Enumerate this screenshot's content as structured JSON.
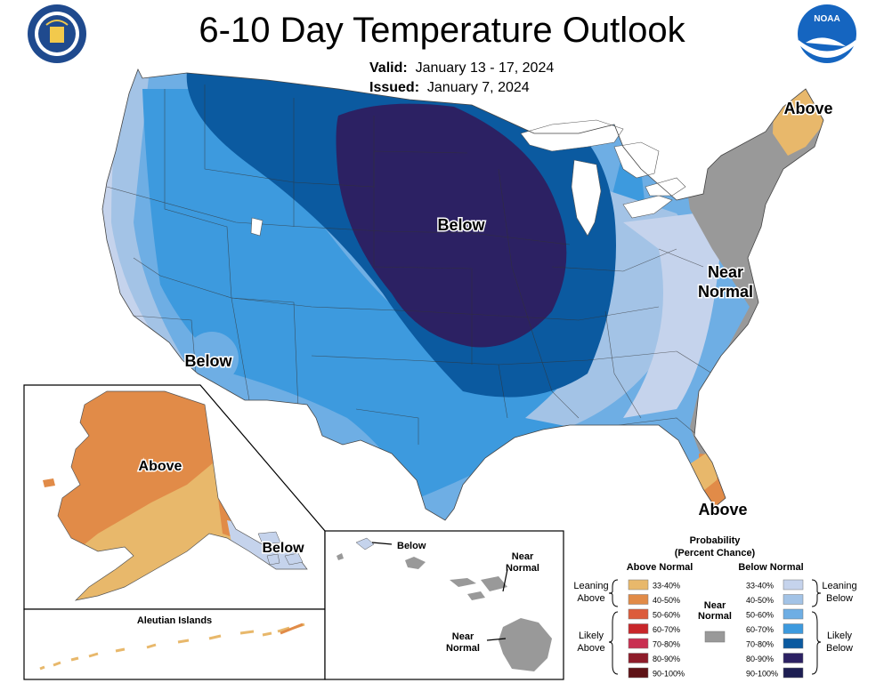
{
  "title": "6-10 Day Temperature Outlook",
  "valid_label": "Valid:",
  "valid_value": "January 13 - 17, 2024",
  "issued_label": "Issued:",
  "issued_value": "January 7, 2024",
  "logos": {
    "left": "doc-seal",
    "right": "noaa-logo",
    "right_text": "NOAA"
  },
  "map_labels": {
    "conus_below": "Below",
    "sw_below": "Below",
    "maine_above": "Above",
    "near_normal_1": "Near",
    "near_normal_2": "Normal",
    "florida_above": "Above",
    "alaska_above": "Above",
    "alaska_below": "Below",
    "aleutian_title": "Aleutian Islands",
    "hawaii_below": "Below",
    "hawaii_near_a1": "Near",
    "hawaii_near_a2": "Normal",
    "hawaii_near_b1": "Near",
    "hawaii_near_b2": "Normal"
  },
  "legend": {
    "title1": "Probability",
    "title2": "(Percent Chance)",
    "above_header": "Above Normal",
    "below_header": "Below Normal",
    "near_label1": "Near",
    "near_label2": "Normal",
    "leaning_above1": "Leaning",
    "leaning_above2": "Above",
    "likely_above1": "Likely",
    "likely_above2": "Above",
    "leaning_below1": "Leaning",
    "leaning_below2": "Below",
    "likely_below1": "Likely",
    "likely_below2": "Below",
    "above_bins": [
      {
        "label": "33-40%",
        "color": "#e8b86b"
      },
      {
        "label": "40-50%",
        "color": "#e18b48"
      },
      {
        "label": "50-60%",
        "color": "#dc5c3c"
      },
      {
        "label": "60-70%",
        "color": "#c8262a"
      },
      {
        "label": "70-80%",
        "color": "#c93052"
      },
      {
        "label": "80-90%",
        "color": "#8e1c2a"
      },
      {
        "label": "90-100%",
        "color": "#5e1216"
      }
    ],
    "below_bins": [
      {
        "label": "33-40%",
        "color": "#c5d3ec"
      },
      {
        "label": "40-50%",
        "color": "#a3c3e6"
      },
      {
        "label": "50-60%",
        "color": "#6eaee4"
      },
      {
        "label": "60-70%",
        "color": "#3d9ade"
      },
      {
        "label": "70-80%",
        "color": "#0b5aa0"
      },
      {
        "label": "80-90%",
        "color": "#2c2163"
      },
      {
        "label": "90-100%",
        "color": "#1d1e52"
      }
    ],
    "near_color": "#999999"
  }
}
